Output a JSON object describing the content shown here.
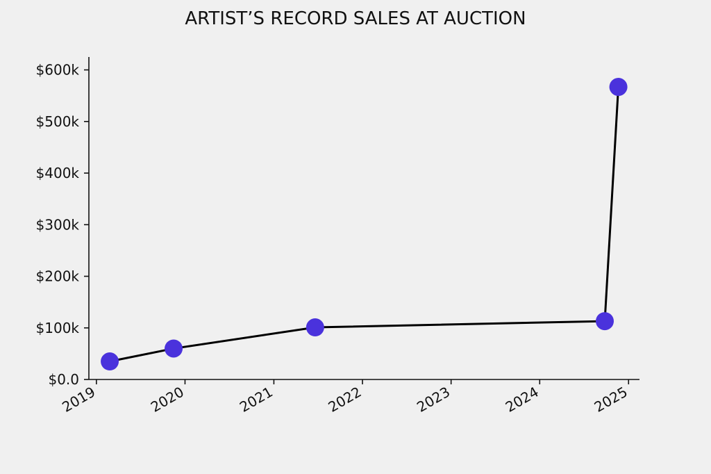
{
  "chart_data": {
    "type": "line",
    "title": "ARTIST’S RECORD SALES AT AUCTION",
    "xlabel": "",
    "ylabel": "",
    "series": [
      {
        "x": [
          "2019-02-25",
          "2019-11-15",
          "2021-06-20",
          "2024-09-25",
          "2024-11-20"
        ],
        "values": [
          35000,
          60000,
          101000,
          113000,
          567000
        ],
        "marker_color": "#4a32dc",
        "line_color": "#000000"
      }
    ],
    "xlim": [
      "2018-12-01",
      "2025-02-15"
    ],
    "ylim": [
      0,
      625000
    ],
    "x_ticks": [
      "2019",
      "2020",
      "2021",
      "2022",
      "2023",
      "2024",
      "2025"
    ],
    "y_ticks": [
      {
        "value": 0,
        "label": "$0.0"
      },
      {
        "value": 100000,
        "label": "$100k"
      },
      {
        "value": 200000,
        "label": "$200k"
      },
      {
        "value": 300000,
        "label": "$300k"
      },
      {
        "value": 400000,
        "label": "$400k"
      },
      {
        "value": 500000,
        "label": "$500k"
      },
      {
        "value": 600000,
        "label": "$600k"
      }
    ],
    "grid": false
  }
}
